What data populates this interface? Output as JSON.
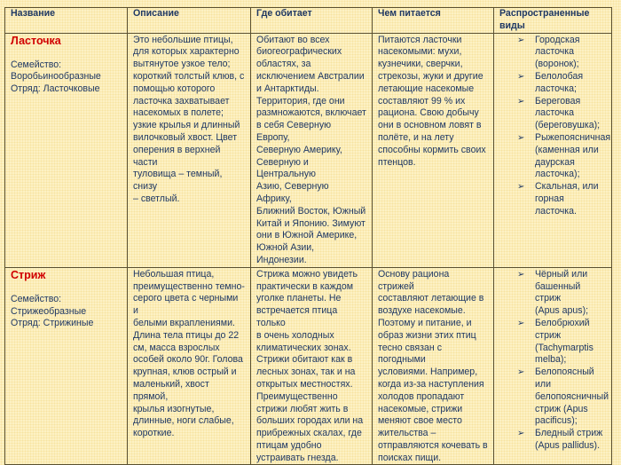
{
  "headers": [
    "Название",
    "Описание",
    "Где обитает",
    "Чем питается",
    "Распространенные виды"
  ],
  "rows": [
    {
      "name": "Ласточка",
      "taxonomy": "Семейство:\nВоробьинообразные\nОтряд: Ласточковые",
      "description": "Это небольшие птицы,\nдля которых характерно\nвытянутое узкое тело;\nкороткий толстый клюв, с\nпомощью которого\nласточка захватывает\nнасекомых в полете;\nузкие крылья и длинный\nвилочковый хвост. Цвет\nоперения в верхней части\nтуловища – темный, снизу\n– светлый.",
      "habitat": "Обитают во всех\nбиогеографических\nобластях, за\nисключением Австралии\nи Антарктиды.\nТерритория, где они\nразмножаются, включает\nв себя Северную Европу,\nСеверную Америку,\nСеверную и Центральную\nАзию, Северную Африку,\nБлижний Восток, Южный\nКитай и Японию. Зимуют\nони в Южной Америке,\nЮжной Азии, Индонезии.",
      "diet": "Питаются ласточки\nнасекомыми: мухи,\nкузнечики, сверчки,\nстрекозы, жуки и другие\nлетающие насекомые\nсоставляют 99 % их\nрациона. Свою добычу\nони в основном ловят в\nполёте, и на лету\nспособны кормить своих\nптенцов.",
      "species": [
        "Городская\nласточка\n(воронок);",
        "Белолобая\nласточка;",
        "Береговая\nласточка\n(береговушка);",
        "Рыжепоясничная\n(каменная или\nдаурская\nласточка);",
        "Скальная, или\nгорная ласточка."
      ]
    },
    {
      "name": "Стриж",
      "taxonomy": "Семейство:\nСтрижеобразные\nОтряд: Стрижиные",
      "description": "Небольшая птица,\nпреимущественно темно-\nсерого цвета с черными и\nбелыми вкраплениями.\nДлина тела птицы до 22\nсм, масса взрослых\nособей около 90г. Голова\nкрупная, клюв острый и\nмаленький, хвост прямой,\nкрылья изогнутые,\nдлинные, ноги слабые,\nкороткие.",
      "habitat": "Стрижа можно увидеть\nпрактически в каждом\nуголке планеты. Не\nвстречается птица только\nв очень холодных\nклиматических зонах.\nСтрижи обитают как в\nлесных зонах, так и на\nоткрытых местностях.\nПреимущественно\nстрижи любят жить в\nбольших городах или на\nприбрежных скалах, где\nптицам удобно\nустраивать гнезда.",
      "diet": "Основу рациона стрижей\nсоставляют летающие в\nвоздухе насекомые.\nПоэтому и питание, и\nобраз жизни этих птиц\nтесно связан с погодными\nусловиями. Например,\nкогда из-за наступления\nхолодов пропадают\nнасекомые, стрижи\nменяют свое место\nжительства –\nотправляются кочевать в\nпоисках пищи.",
      "species": [
        "Чёрный или\nбашенный стриж\n(Apus apus);",
        "Белобрюхий стриж\n(Tachymarptis\nmelba);",
        "Белопоясный или\nбелопоясничный\nстриж (Apus\npacificus);",
        "Бледный стриж\n(Apus pallidus)."
      ]
    }
  ],
  "bullet_icon": "arrowhead-bullet",
  "colors": {
    "text": "#1f3864",
    "name": "#d00000",
    "background": "#fdf1c4"
  }
}
